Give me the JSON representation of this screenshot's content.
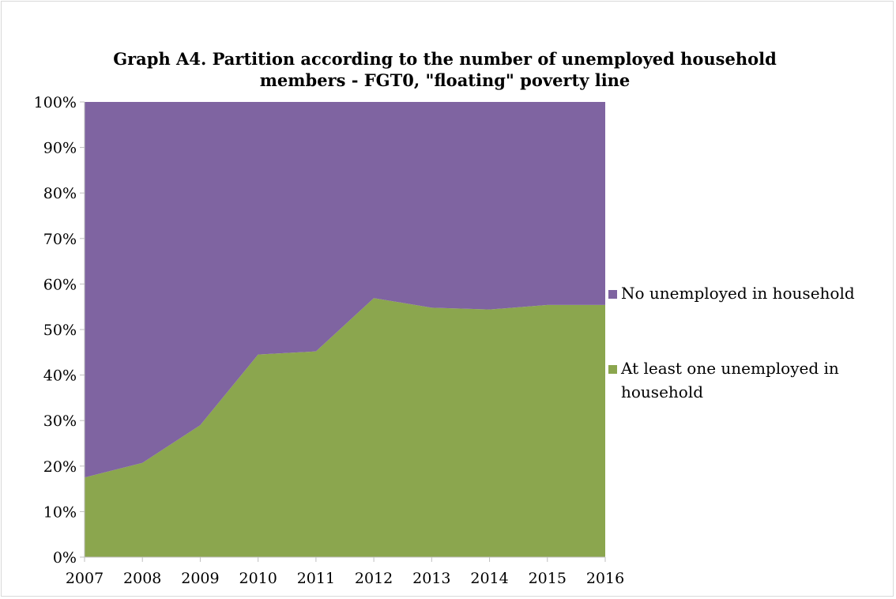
{
  "chart_data": {
    "type": "area",
    "stacked": true,
    "percent": true,
    "title_lines": [
      "Graph A4. Partition according to the number of unemployed household",
      "members - FGT0, \"floating\" poverty line"
    ],
    "x": [
      "2007",
      "2008",
      "2009",
      "2010",
      "2011",
      "2012",
      "2013",
      "2014",
      "2015",
      "2016"
    ],
    "yticks": [
      "0%",
      "10%",
      "20%",
      "30%",
      "40%",
      "50%",
      "60%",
      "70%",
      "80%",
      "90%",
      "100%"
    ],
    "ylim": [
      0,
      100
    ],
    "legend_position": "right",
    "series": [
      {
        "name": "At least one unemployed in household",
        "name_lines": [
          "At least one unemployed in",
          "household"
        ],
        "color": "#8ba64e",
        "values": [
          17.5,
          20.7,
          29.0,
          44.5,
          45.2,
          56.9,
          54.8,
          54.4,
          55.4,
          55.4
        ]
      },
      {
        "name": "No unemployed in household",
        "name_lines": [
          "No unemployed in household"
        ],
        "color": "#7f64a1",
        "values": [
          82.5,
          79.3,
          71.0,
          55.5,
          54.8,
          43.1,
          45.2,
          45.6,
          44.6,
          44.6
        ]
      }
    ]
  }
}
